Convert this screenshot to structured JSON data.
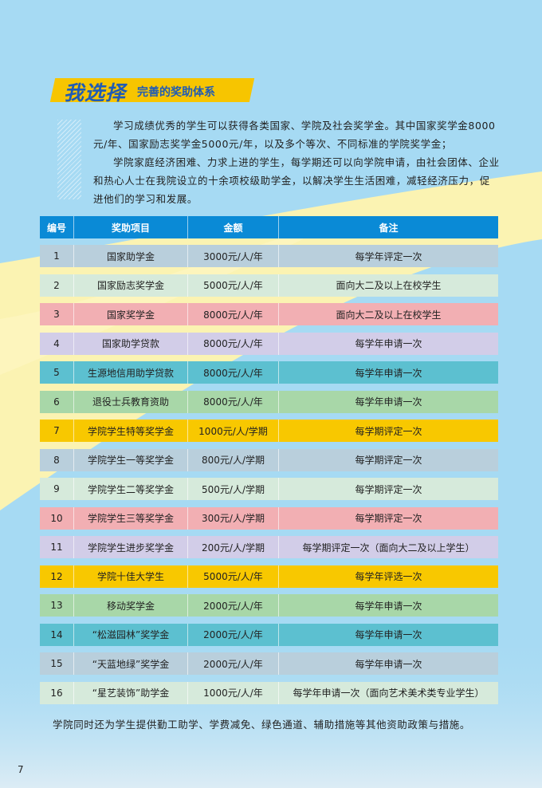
{
  "header": {
    "title_main": "我选择",
    "title_sub": "完善的奖助体系"
  },
  "intro": [
    "学习成绩优秀的学生可以获得各类国家、学院及社会奖学金。其中国家奖学金8000元/年、国家励志奖学金5000元/年，以及多个等次、不同标准的学院奖学金；",
    "学院家庭经济困难、力求上进的学生，每学期还可以向学院申请，由社会团体、企业和热心人士在我院设立的十余项校级助学金，以解决学生生活困难，减轻经济压力，促进他们的学习和发展。"
  ],
  "table": {
    "headers": [
      "编号",
      "奖助项目",
      "金额",
      "备注"
    ],
    "header_color": "#0a8ad6",
    "rows": [
      {
        "no": "1",
        "item": "国家助学金",
        "amount": "3000元/人/年",
        "note": "每学年评定一次",
        "color": "#b9cfdc"
      },
      {
        "no": "2",
        "item": "国家励志奖学金",
        "amount": "5000元/人/年",
        "note": "面向大二及以上在校学生",
        "color": "#d6eadb"
      },
      {
        "no": "3",
        "item": "国家奖学金",
        "amount": "8000元/人/年",
        "note": "面向大二及以上在校学生",
        "color": "#f2afb3"
      },
      {
        "no": "4",
        "item": "国家助学贷款",
        "amount": "8000元/人/年",
        "note": "每学年申请一次",
        "color": "#d2cde8"
      },
      {
        "no": "5",
        "item": "生源地信用助学贷款",
        "amount": "8000元/人/年",
        "note": "每学年申请一次",
        "color": "#5cc0d0"
      },
      {
        "no": "6",
        "item": "退役士兵教育资助",
        "amount": "8000元/人/年",
        "note": "每学年申请一次",
        "color": "#a8d7a8"
      },
      {
        "no": "7",
        "item": "学院学生特等奖学金",
        "amount": "1000元/人/学期",
        "note": "每学期评定一次",
        "color": "#f8c800"
      },
      {
        "no": "8",
        "item": "学院学生一等奖学金",
        "amount": "800元/人/学期",
        "note": "每学期评定一次",
        "color": "#b9cfdc"
      },
      {
        "no": "9",
        "item": "学院学生二等奖学金",
        "amount": "500元/人/学期",
        "note": "每学期评定一次",
        "color": "#d6eadb"
      },
      {
        "no": "10",
        "item": "学院学生三等奖学金",
        "amount": "300元/人/学期",
        "note": "每学期评定一次",
        "color": "#f2afb3"
      },
      {
        "no": "11",
        "item": "学院学生进步奖学金",
        "amount": "200元/人/学期",
        "note": "每学期评定一次（面向大二及以上学生）",
        "color": "#d2cde8"
      },
      {
        "no": "12",
        "item": "学院十佳大学生",
        "amount": "5000元/人/年",
        "note": "每学年评选一次",
        "color": "#f8c800"
      },
      {
        "no": "13",
        "item": "移动奖学金",
        "amount": "2000元/人/年",
        "note": "每学年申请一次",
        "color": "#a8d7a8"
      },
      {
        "no": "14",
        "item": "“松滋园林”奖学金",
        "amount": "2000元/人/年",
        "note": "每学年申请一次",
        "color": "#5cc0d0"
      },
      {
        "no": "15",
        "item": "“天蓝地绿”奖学金",
        "amount": "2000元/人/年",
        "note": "每学年申请一次",
        "color": "#b9cfdc"
      },
      {
        "no": "16",
        "item": "“星艺装饰”助学金",
        "amount": "1000元/人/年",
        "note": "每学年申请一次（面向艺术美术类专业学生）",
        "color": "#d6eadb"
      }
    ]
  },
  "footer": "学院同时还为学生提供勤工助学、学费减免、绿色通道、辅助措施等其他资助政策与措施。",
  "page_number": "7"
}
